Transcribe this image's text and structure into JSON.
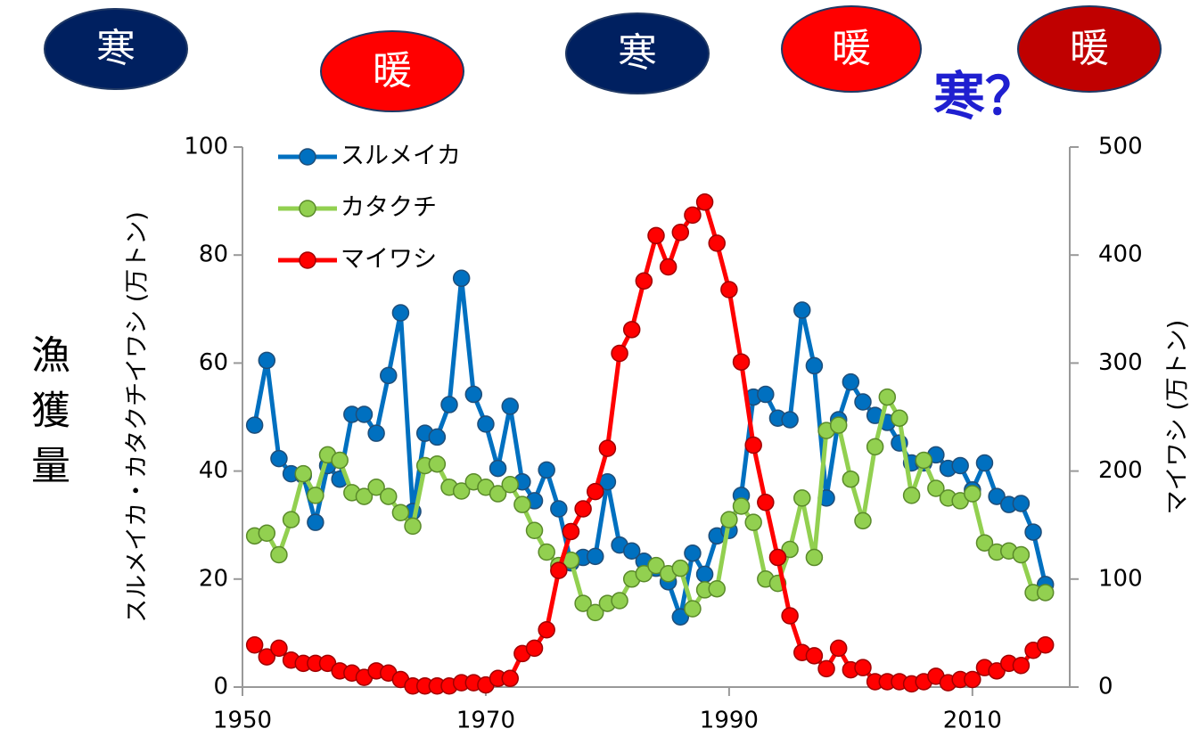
{
  "chart_data": {
    "type": "line",
    "ylabel": "スルメイカ・カタクチイワシ (万トン)",
    "y2label": "マイワシ (万トン)",
    "side_label": "漁獲量",
    "annotations": [
      {
        "text": "寒",
        "color": "#002060"
      },
      {
        "text": "暖",
        "color": "#ff0000"
      },
      {
        "text": "寒",
        "color": "#002060"
      },
      {
        "text": "暖",
        "color": "#ff0000"
      },
      {
        "text": "暖",
        "color": "#c00000"
      },
      {
        "text": "寒？",
        "color": "#1f1fd0"
      }
    ],
    "x": [
      1951,
      1952,
      1953,
      1954,
      1955,
      1956,
      1957,
      1958,
      1959,
      1960,
      1961,
      1962,
      1963,
      1964,
      1965,
      1966,
      1967,
      1968,
      1969,
      1970,
      1971,
      1972,
      1973,
      1974,
      1975,
      1976,
      1977,
      1978,
      1979,
      1980,
      1981,
      1982,
      1983,
      1984,
      1985,
      1986,
      1987,
      1988,
      1989,
      1990,
      1991,
      1992,
      1993,
      1994,
      1995,
      1996,
      1997,
      1998,
      1999,
      2000,
      2001,
      2002,
      2003,
      2004,
      2005,
      2006,
      2007,
      2008,
      2009,
      2010,
      2011,
      2012,
      2013,
      2014,
      2015,
      2016
    ],
    "xlim": [
      1950,
      2018
    ],
    "xticks": [
      1950,
      1970,
      1990,
      2010
    ],
    "ylim": [
      0,
      100
    ],
    "yticks": [
      0,
      20,
      40,
      60,
      80,
      100
    ],
    "y2lim": [
      0,
      500
    ],
    "y2ticks": [
      0,
      100,
      200,
      300,
      400,
      500
    ],
    "legend": "upper left",
    "series": [
      {
        "name": "スルメイカ",
        "color": "#0070c0",
        "values": [
          48.5,
          60.5,
          42.3,
          39.5,
          39.2,
          30.5,
          41,
          38.5,
          50.5,
          50.5,
          47,
          57.7,
          69.3,
          32.5,
          47,
          46.3,
          52.3,
          75.7,
          54.2,
          48.7,
          40.5,
          52,
          38,
          34.5,
          40.2,
          33,
          23,
          24,
          24.2,
          38,
          26.3,
          25.2,
          23.3,
          22,
          19.5,
          13,
          24.8,
          20.9,
          28,
          29,
          35.5,
          53.7,
          54.2,
          49.8,
          49.5,
          69.8,
          59.5,
          35,
          49.5,
          56.5,
          52.8,
          50.3,
          49,
          45.2,
          41.5,
          41.5,
          43,
          40.5,
          41,
          36.5,
          41.5,
          35.3,
          33.8,
          34,
          28.7,
          19
        ]
      },
      {
        "name": "カタクチ",
        "color": "#92d050",
        "values": [
          28,
          28.5,
          24.5,
          31,
          39.5,
          35.5,
          43,
          42,
          36,
          35.3,
          37,
          35.3,
          32.3,
          29.8,
          41,
          41.3,
          37,
          36.3,
          38,
          37,
          35.8,
          37.5,
          33.8,
          29,
          25,
          22.5,
          23.5,
          15.5,
          13.8,
          15.5,
          16,
          20,
          21,
          22.5,
          21,
          22,
          14.5,
          18,
          18.2,
          31,
          33.5,
          30.5,
          20,
          19.2,
          25.5,
          35,
          24,
          47.5,
          48.5,
          38.5,
          30.8,
          44.5,
          53.7,
          49.8,
          35.5,
          42,
          36.8,
          35,
          34.5,
          35.8,
          26.7,
          25,
          25.2,
          24.5,
          17.5,
          17.5
        ]
      },
      {
        "name": "マイワシ",
        "color": "#ff0000",
        "axis": "y2",
        "values": [
          39,
          28,
          36,
          25,
          22,
          22,
          22,
          15,
          13,
          9,
          15,
          13,
          7,
          1,
          1,
          1,
          1,
          4,
          4,
          2,
          8,
          8,
          31,
          36,
          53,
          108,
          144,
          165,
          181,
          221,
          309,
          331,
          376,
          418,
          389,
          421,
          437,
          449,
          411,
          368,
          301,
          224,
          171,
          120,
          66,
          32,
          29,
          17,
          36,
          16,
          18,
          5,
          5,
          5,
          3,
          5,
          10,
          4,
          7,
          7,
          18,
          15,
          22,
          20,
          34,
          39
        ]
      }
    ]
  }
}
